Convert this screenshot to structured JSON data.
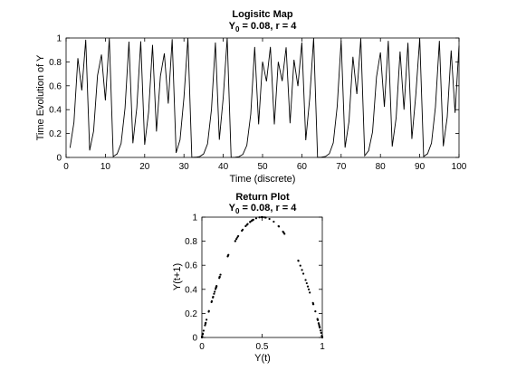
{
  "chart_data": [
    {
      "type": "line",
      "title": "Logisitc Map",
      "subtitle": {
        "prefix": "Y",
        "subscript": "0",
        "suffix": " = 0.08, r = 4"
      },
      "xlabel": "Time (discrete)",
      "ylabel": "Time Evolution of Y",
      "xlim": [
        0,
        100
      ],
      "ylim": [
        0,
        1
      ],
      "xticks": [
        0,
        10,
        20,
        30,
        40,
        50,
        60,
        70,
        80,
        90,
        100
      ],
      "yticks": [
        0,
        0.2,
        0.4,
        0.6,
        0.8,
        1
      ],
      "ytick_labels": [
        "0",
        "0.2",
        "0.4",
        "0.6",
        "0.8",
        "1"
      ],
      "color": "#000000",
      "series": [
        {
          "x": [
            1,
            2,
            3,
            4,
            5,
            6,
            7,
            8,
            9,
            10,
            11,
            12,
            13,
            14,
            15,
            16,
            17,
            18,
            19,
            20,
            21,
            22,
            23,
            24,
            25,
            26,
            27,
            28,
            29,
            30,
            31,
            32,
            33,
            34,
            35,
            36,
            37,
            38,
            39,
            40,
            41,
            42,
            43,
            44,
            45,
            46,
            47,
            48,
            49,
            50,
            51,
            52,
            53,
            54,
            55,
            56,
            57,
            58,
            59,
            60,
            61,
            62,
            63,
            64,
            65,
            66,
            67,
            68,
            69,
            70,
            71,
            72,
            73,
            74,
            75,
            76,
            77,
            78,
            79,
            80,
            81,
            82,
            83,
            84,
            85,
            86,
            87,
            88,
            89,
            90,
            91,
            92,
            93,
            94,
            95,
            96,
            97,
            98,
            99,
            100
          ],
          "values": [
            0.08,
            0.2944,
            0.8313,
            0.5609,
            0.9852,
            0.0584,
            0.2199,
            0.6862,
            0.8613,
            0.4779,
            0.9981,
            0.0076,
            0.0301,
            0.1168,
            0.4127,
            0.9695,
            0.1184,
            0.4174,
            0.9727,
            0.1063,
            0.38,
            0.9424,
            0.2171,
            0.6799,
            0.8706,
            0.4507,
            0.9903,
            0.0384,
            0.1476,
            0.5032,
            0.9999,
            0.0005,
            0.0018,
            0.0073,
            0.0292,
            0.1133,
            0.4019,
            0.9615,
            0.1481,
            0.5047,
            0.9999,
            0.0004,
            0.0016,
            0.0065,
            0.0259,
            0.101,
            0.3632,
            0.9251,
            0.2772,
            0.8014,
            0.6366,
            0.9253,
            0.2766,
            0.8003,
            0.6393,
            0.9224,
            0.2864,
            0.8175,
            0.5968,
            0.9625,
            0.1444,
            0.4942,
            0.9999,
            0.0005,
            0.002,
            0.0079,
            0.0314,
            0.1217,
            0.4276,
            0.979,
            0.0822,
            0.3017,
            0.8427,
            0.5302,
            0.9964,
            0.0144,
            0.0568,
            0.2143,
            0.6735,
            0.8796,
            0.4236,
            0.9766,
            0.0914,
            0.3322,
            0.8874,
            0.3997,
            0.9598,
            0.1543,
            0.522,
            0.998,
            0.0078,
            0.031,
            0.1201,
            0.4227,
            0.9761,
            0.0934,
            0.3387,
            0.8959,
            0.373,
            0.9355
          ]
        }
      ]
    },
    {
      "type": "scatter",
      "title": "Return Plot",
      "subtitle": {
        "prefix": "Y",
        "subscript": "0",
        "suffix": " = 0.08, r = 4"
      },
      "xlabel": "Y(t)",
      "ylabel": "Y(t+1)",
      "xlim": [
        0,
        1
      ],
      "ylim": [
        0,
        1
      ],
      "xticks": [
        0,
        0.5,
        1
      ],
      "xtick_labels": [
        "0",
        "0.5",
        "1"
      ],
      "yticks": [
        0,
        0.2,
        0.4,
        0.6,
        0.8,
        1
      ],
      "ytick_labels": [
        "0",
        "0.2",
        "0.4",
        "0.6",
        "0.8",
        "1"
      ],
      "color": "#000000",
      "series": [
        {
          "x": [
            0.08,
            0.2944,
            0.8313,
            0.5609,
            0.9852,
            0.0584,
            0.2199,
            0.6862,
            0.8613,
            0.4779,
            0.9981,
            0.0076,
            0.0301,
            0.1168,
            0.4127,
            0.9695,
            0.1184,
            0.4174,
            0.9727,
            0.1063,
            0.38,
            0.9424,
            0.2171,
            0.6799,
            0.8706,
            0.4507,
            0.9903,
            0.0384,
            0.1476,
            0.5032,
            0.9999,
            0.0005,
            0.0018,
            0.0073,
            0.0292,
            0.1133,
            0.4019,
            0.9615,
            0.1481,
            0.5047,
            0.9999,
            0.0004,
            0.0016,
            0.0065,
            0.0259,
            0.101,
            0.3632,
            0.9251,
            0.2772,
            0.8014,
            0.6366,
            0.9253,
            0.2766,
            0.8003,
            0.6393,
            0.9224,
            0.2864,
            0.8175,
            0.5968,
            0.9625,
            0.1444,
            0.4942,
            0.9999,
            0.0005,
            0.002,
            0.0079,
            0.0314,
            0.1217,
            0.4276,
            0.979,
            0.0822,
            0.3017,
            0.8427,
            0.5302,
            0.9964,
            0.0144,
            0.0568,
            0.2143,
            0.6735,
            0.8796,
            0.4236,
            0.9766,
            0.0914,
            0.3322,
            0.8874,
            0.3997,
            0.9598,
            0.1543,
            0.522,
            0.998,
            0.0078,
            0.031,
            0.1201,
            0.4227,
            0.9761,
            0.0934,
            0.3387,
            0.8959,
            0.373
          ],
          "values": [
            0.2944,
            0.8313,
            0.5609,
            0.9852,
            0.0584,
            0.2199,
            0.6862,
            0.8613,
            0.4779,
            0.9981,
            0.0076,
            0.0301,
            0.1168,
            0.4127,
            0.9695,
            0.1184,
            0.4174,
            0.9727,
            0.1063,
            0.38,
            0.9424,
            0.2171,
            0.6799,
            0.8706,
            0.4507,
            0.9903,
            0.0384,
            0.1476,
            0.5032,
            0.9999,
            0.0005,
            0.0018,
            0.0073,
            0.0292,
            0.1133,
            0.4019,
            0.9615,
            0.1481,
            0.5047,
            0.9999,
            0.0004,
            0.0016,
            0.0065,
            0.0259,
            0.101,
            0.3632,
            0.9251,
            0.2772,
            0.8014,
            0.6366,
            0.9253,
            0.2766,
            0.8003,
            0.6393,
            0.9224,
            0.2864,
            0.8175,
            0.5968,
            0.9625,
            0.1444,
            0.4942,
            0.9999,
            0.0005,
            0.002,
            0.0079,
            0.0314,
            0.1217,
            0.4276,
            0.979,
            0.0822,
            0.3017,
            0.8427,
            0.5302,
            0.9964,
            0.0144,
            0.0568,
            0.2143,
            0.6735,
            0.8796,
            0.4236,
            0.9766,
            0.0914,
            0.3322,
            0.8874,
            0.3997,
            0.9598,
            0.1543,
            0.522,
            0.998,
            0.0078,
            0.031,
            0.1201,
            0.4227,
            0.9761,
            0.0934,
            0.3387,
            0.8959,
            0.373,
            0.9355
          ]
        }
      ]
    }
  ]
}
